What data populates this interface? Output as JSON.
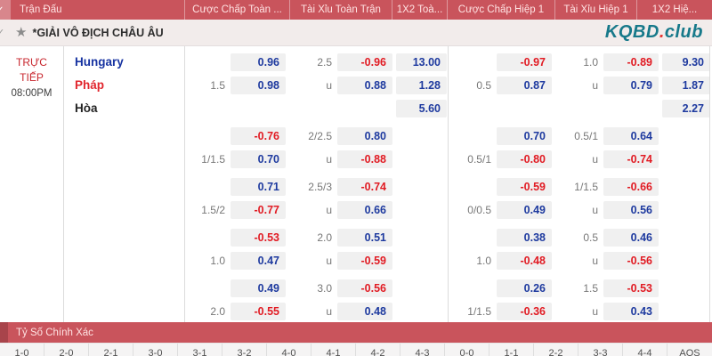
{
  "header": {
    "columns": [
      "Trận Đấu",
      "Cược Chấp Toàn ...",
      "Tài Xỉu Toàn Trận",
      "1X2 Toà...",
      "Cược Chấp Hiệp 1",
      "Tài Xỉu Hiệp 1",
      "1X2 Hiệ..."
    ]
  },
  "league": {
    "name": "*GIẢI VÔ ĐỊCH CHÂU ÂU",
    "logo": {
      "text_primary": "KQBD",
      "dot": ".",
      "text_secondary": "club"
    }
  },
  "match": {
    "status": "TRỰC TIẾP",
    "time": "08:00PM",
    "teams": [
      {
        "name": "Hungary",
        "color": "#1733a1"
      },
      {
        "name": "Pháp",
        "color": "#e1252c"
      },
      {
        "name": "Hòa",
        "color": "#222222"
      }
    ]
  },
  "odds": {
    "column_roles": [
      "ft-handicap-line",
      "ft-handicap-odds",
      "ft-overunder-line",
      "ft-overunder-odds",
      "ft-1x2-odds",
      "h1-handicap-line",
      "h1-handicap-odds",
      "h1-overunder-line",
      "h1-overunder-odds",
      "h1-1x2-odds"
    ],
    "groups": [
      {
        "rows": [
          [
            "",
            "0.96",
            "2.5",
            "-0.96",
            "13.00",
            "",
            "-0.97",
            "1.0",
            "-0.89",
            "9.30"
          ],
          [
            "1.5",
            "0.98",
            "u",
            "0.88",
            "1.28",
            "0.5",
            "0.87",
            "u",
            "0.79",
            "1.87"
          ],
          [
            "",
            "",
            "",
            "",
            "5.60",
            "",
            "",
            "",
            "",
            "2.27"
          ]
        ]
      },
      {
        "rows": [
          [
            "",
            "-0.76",
            "2/2.5",
            "0.80",
            "",
            "",
            "0.70",
            "0.5/1",
            "0.64",
            ""
          ],
          [
            "1/1.5",
            "0.70",
            "u",
            "-0.88",
            "",
            "0.5/1",
            "-0.80",
            "u",
            "-0.74",
            ""
          ]
        ]
      },
      {
        "rows": [
          [
            "",
            "0.71",
            "2.5/3",
            "-0.74",
            "",
            "",
            "-0.59",
            "1/1.5",
            "-0.66",
            ""
          ],
          [
            "1.5/2",
            "-0.77",
            "u",
            "0.66",
            "",
            "0/0.5",
            "0.49",
            "u",
            "0.56",
            ""
          ]
        ]
      },
      {
        "rows": [
          [
            "",
            "-0.53",
            "2.0",
            "0.51",
            "",
            "",
            "0.38",
            "0.5",
            "0.46",
            ""
          ],
          [
            "1.0",
            "0.47",
            "u",
            "-0.59",
            "",
            "1.0",
            "-0.48",
            "u",
            "-0.56",
            ""
          ]
        ]
      },
      {
        "rows": [
          [
            "",
            "0.49",
            "3.0",
            "-0.56",
            "",
            "",
            "0.26",
            "1.5",
            "-0.53",
            ""
          ],
          [
            "2.0",
            "-0.55",
            "u",
            "0.48",
            "",
            "1/1.5",
            "-0.36",
            "u",
            "0.43",
            ""
          ]
        ]
      }
    ]
  },
  "exact_score": {
    "title": "Tỷ Số Chính Xác",
    "scores": [
      "1-0",
      "2-0",
      "2-1",
      "3-0",
      "3-1",
      "3-2",
      "4-0",
      "4-1",
      "4-2",
      "4-3",
      "0-0",
      "1-1",
      "2-2",
      "3-3",
      "4-4",
      "AOS"
    ]
  },
  "icons": {
    "favorite": "star-icon",
    "row_select": "check-icon"
  },
  "colors": {
    "header_bg": "#c9545c",
    "header_strip": "#d8868c",
    "league_bg": "#f2eceb",
    "odds_positive": "#1e3a9f",
    "odds_negative": "#e11b23",
    "line_gray": "#777777",
    "logo_teal": "#17798a",
    "logo_dot": "#e53935",
    "live_red": "#c8272e"
  }
}
